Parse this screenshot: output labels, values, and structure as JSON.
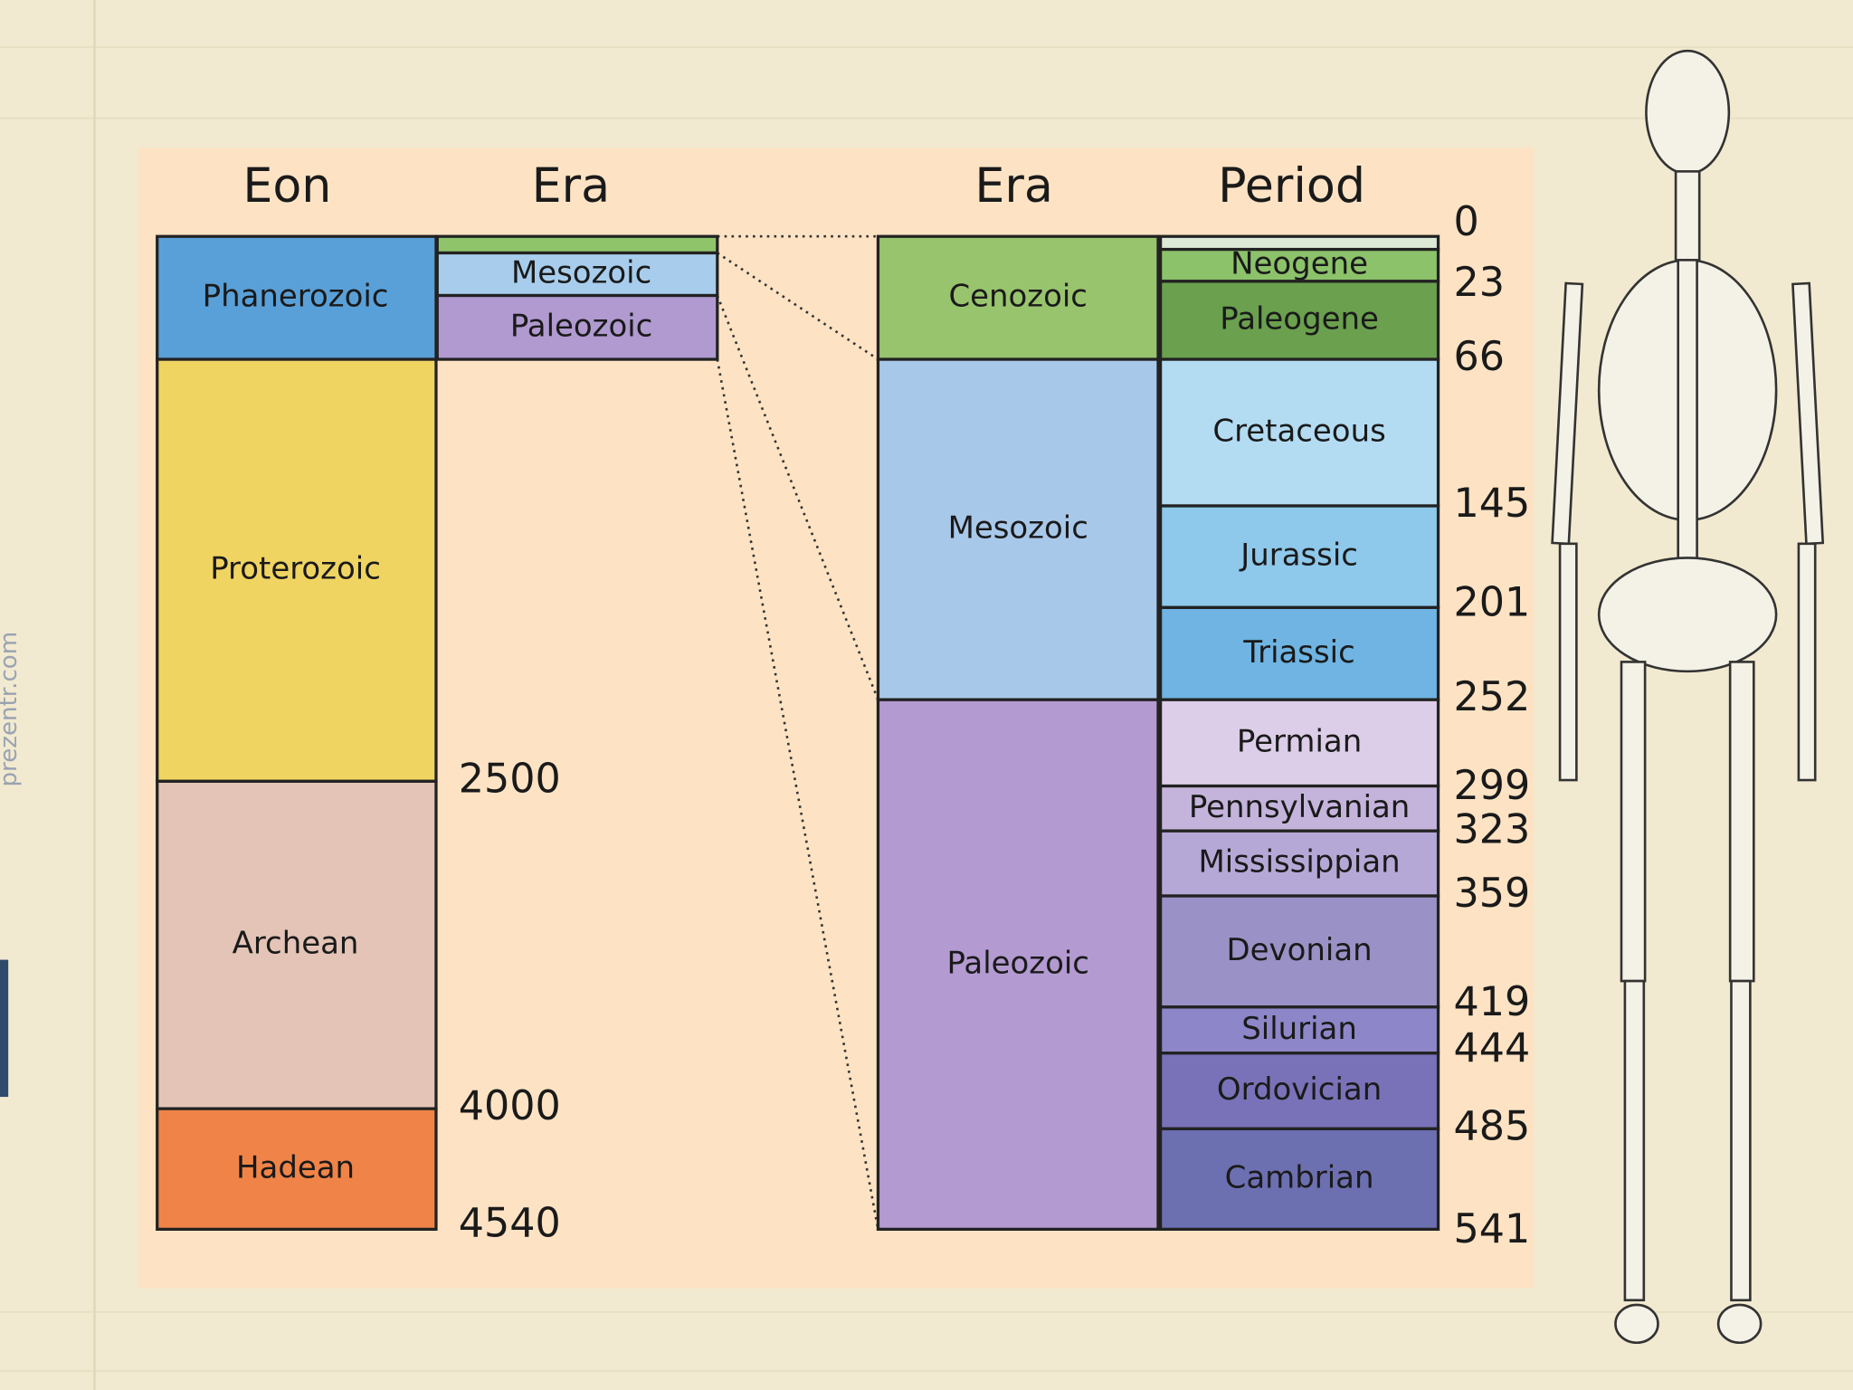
{
  "watermark": "prezentr.com",
  "headers": {
    "eon": "Eon",
    "era_left": "Era",
    "era_right": "Era",
    "period": "Period"
  },
  "eons": [
    "Phanerozoic",
    "Proterozoic",
    "Archean",
    "Hadean"
  ],
  "eon_ages": [
    2500,
    4000,
    4540
  ],
  "small_eras": [
    "Mesozoic",
    "Paleozoic"
  ],
  "eras": [
    "Cenozoic",
    "Mesozoic",
    "Paleozoic"
  ],
  "periods": [
    "Neogene",
    "Paleogene",
    "Cretaceous",
    "Jurassic",
    "Triassic",
    "Permian",
    "Pennsylvanian",
    "Mississippian",
    "Devonian",
    "Silurian",
    "Ordovician",
    "Cambrian"
  ],
  "period_ages": [
    0,
    23,
    66,
    145,
    201,
    252,
    299,
    323,
    359,
    419,
    444,
    485,
    541
  ]
}
